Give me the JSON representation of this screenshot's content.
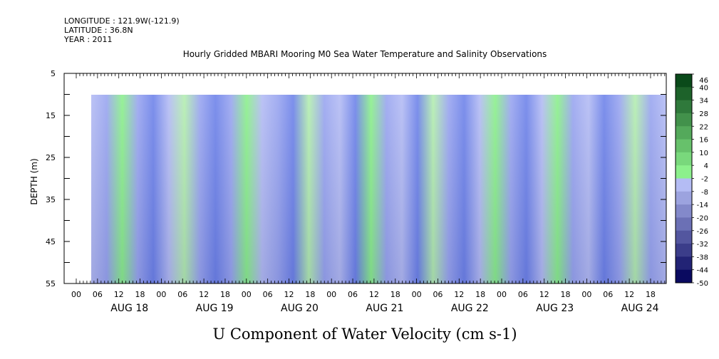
{
  "header": {
    "longitude": "LONGITUDE : 121.9W(-121.9)",
    "latitude": "LATITUDE : 36.8N",
    "year": "YEAR : 2011"
  },
  "chart_data": {
    "type": "heatmap",
    "title": "Hourly Gridded MBARI Mooring M0 Sea Water Temperature and Salinity Observations",
    "xlabel": "U Component of Water Velocity (cm s-1)",
    "ylabel": "DEPTH (m)",
    "ylim": [
      55,
      5
    ],
    "y_ticks": [
      "5",
      "15",
      "25",
      "35",
      "45",
      "55"
    ],
    "x_hour_labels": [
      "00",
      "06",
      "12",
      "18",
      "00",
      "06",
      "12",
      "18",
      "00",
      "06",
      "12",
      "18",
      "00",
      "06",
      "12",
      "18",
      "00",
      "06",
      "12",
      "18",
      "00",
      "06",
      "12",
      "18",
      "00",
      "06",
      "12",
      "18"
    ],
    "x_day_labels": [
      "AUG 18",
      "AUG 19",
      "AUG 20",
      "AUG 21",
      "AUG 22",
      "AUG 23",
      "AUG 24"
    ],
    "data_depth_range": [
      10,
      55
    ],
    "colorbar": {
      "labels": [
        "46",
        "40",
        "34",
        "28",
        "22",
        "16",
        "10",
        "4",
        "-2",
        "-8",
        "-14",
        "-20",
        "-26",
        "-32",
        "-38",
        "-44",
        "-50"
      ],
      "top_color": "#0a4a1a",
      "bottom_color": "#0a0a60"
    },
    "colors": {
      "green": "#8cf08c",
      "light_green": "#b4eeb0",
      "light_blue": "#b4bcf4",
      "blue": "#9aa6f0",
      "dark_blue": "#6f84ea"
    }
  }
}
